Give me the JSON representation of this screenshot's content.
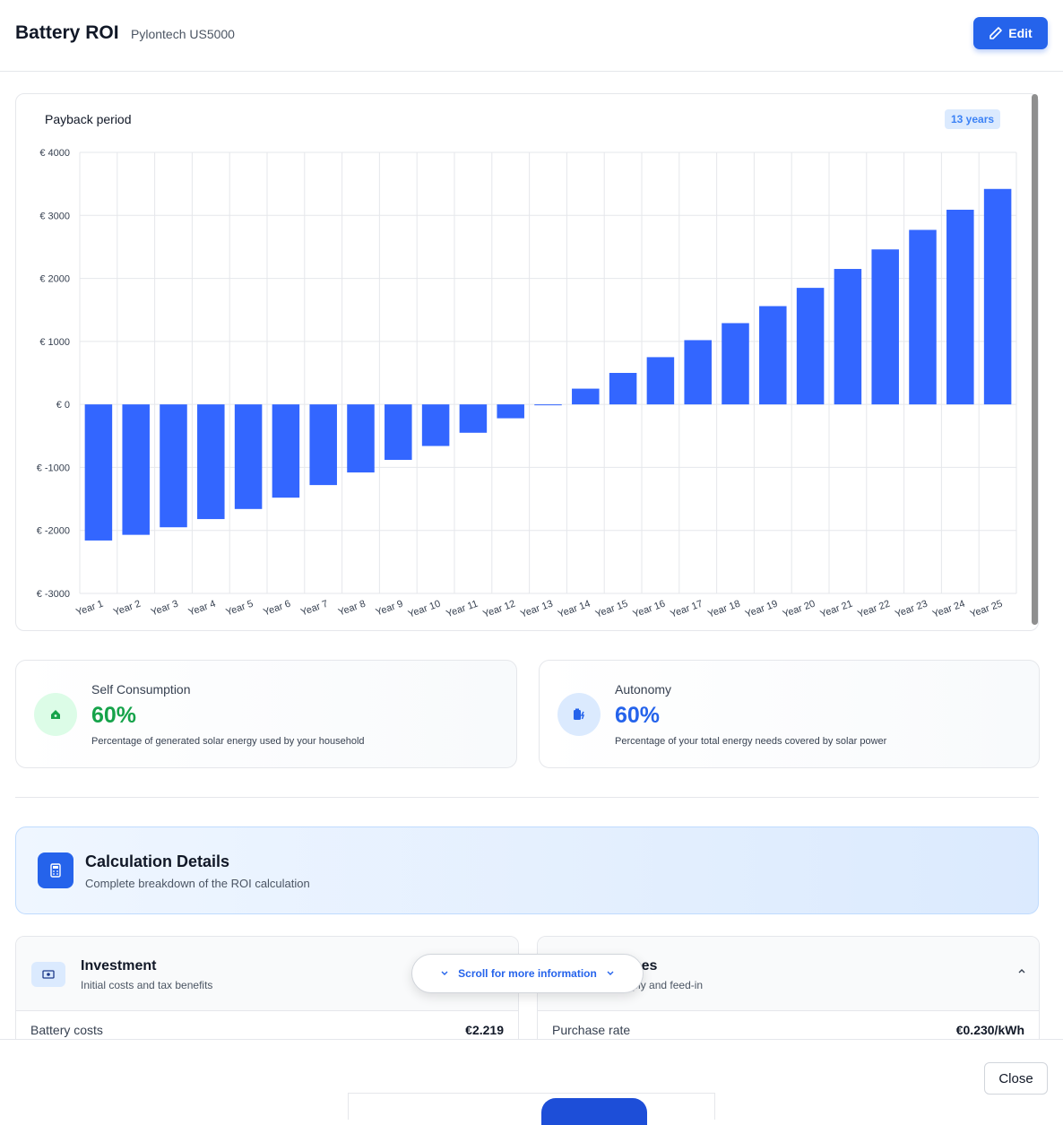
{
  "header": {
    "title": "Battery ROI",
    "subtitle": "Pylontech US5000",
    "edit_label": "Edit"
  },
  "chart": {
    "title": "Payback period",
    "badge": "13 years"
  },
  "chart_data": {
    "type": "bar",
    "categories": [
      "Year 1",
      "Year 2",
      "Year 3",
      "Year 4",
      "Year 5",
      "Year 6",
      "Year 7",
      "Year 8",
      "Year 9",
      "Year 10",
      "Year 11",
      "Year 12",
      "Year 13",
      "Year 14",
      "Year 15",
      "Year 16",
      "Year 17",
      "Year 18",
      "Year 19",
      "Year 20",
      "Year 21",
      "Year 22",
      "Year 23",
      "Year 24",
      "Year 25"
    ],
    "values": [
      -2160,
      -2070,
      -1950,
      -1820,
      -1660,
      -1480,
      -1280,
      -1080,
      -880,
      -660,
      -450,
      -220,
      -10,
      250,
      500,
      750,
      1020,
      1290,
      1560,
      1850,
      2150,
      2460,
      2770,
      3090,
      3420
    ],
    "yticks": [
      "€ 4000",
      "€ 3000",
      "€ 2000",
      "€ 1000",
      "€ 0",
      "€ -1000",
      "€ -2000",
      "€ -3000"
    ],
    "ylim": [
      -3000,
      4000
    ],
    "grid": true,
    "bar_color": "#3366ff"
  },
  "metrics": [
    {
      "label": "Self Consumption",
      "value": "60%",
      "desc": "Percentage of generated solar energy used by your household",
      "color": "#16a34a"
    },
    {
      "label": "Autonomy",
      "value": "60%",
      "desc": "Percentage of your total energy needs covered by solar power",
      "color": "#2563eb"
    }
  ],
  "calc": {
    "title": "Calculation Details",
    "subtitle": "Complete breakdown of the ROI calculation"
  },
  "investment": {
    "title": "Investment",
    "subtitle": "Initial costs and tax benefits",
    "row_label": "Battery costs",
    "row_value": "€2.219"
  },
  "prices": {
    "title": "y Prices",
    "subtitle": "or supply and feed-in",
    "row_label": "Purchase rate",
    "row_value": "€0.230/kWh"
  },
  "scroll_hint": "Scroll for more information",
  "footer": {
    "close_label": "Close"
  }
}
